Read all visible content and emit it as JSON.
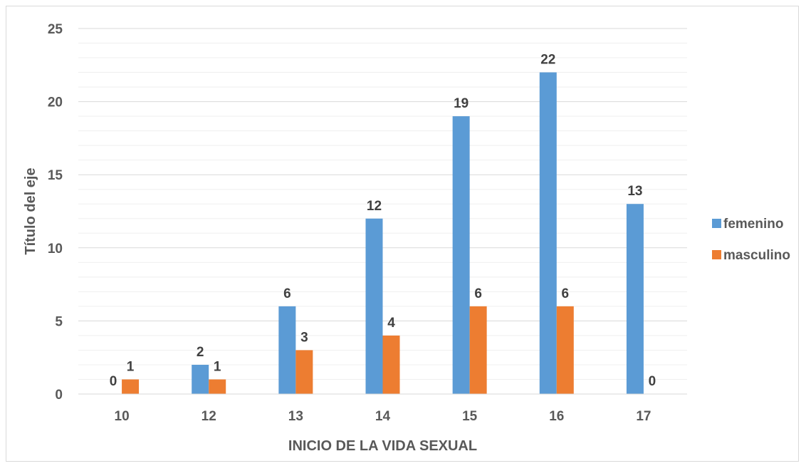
{
  "chart_data": {
    "type": "bar",
    "categories": [
      "10",
      "12",
      "13",
      "14",
      "15",
      "16",
      "17"
    ],
    "series": [
      {
        "name": "femenino",
        "values": [
          0,
          2,
          6,
          12,
          19,
          22,
          13
        ],
        "color": "#5b9bd5"
      },
      {
        "name": "masculino",
        "values": [
          1,
          1,
          3,
          4,
          6,
          6,
          0
        ],
        "color": "#ed7d31"
      }
    ],
    "xlabel": "INICIO DE LA VIDA SEXUAL",
    "ylabel": "Título del eje",
    "ylim": [
      0,
      25
    ],
    "yticks": [
      0,
      5,
      10,
      15,
      20,
      25
    ],
    "minor_grid_step": 1,
    "grid": true,
    "legend_position": "right",
    "data_labels": true
  }
}
